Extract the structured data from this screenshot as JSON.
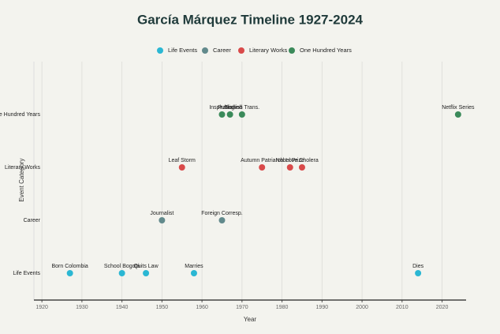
{
  "chart_data": {
    "type": "scatter",
    "title": "García Márquez Timeline 1927-2024",
    "xlabel": "Year",
    "ylabel": "Event Category",
    "ycategories": [
      "Life Events",
      "Career",
      "Literary Works",
      "One Hundred Years"
    ],
    "xlim": [
      1918,
      2026
    ],
    "xticks": [
      1920,
      1930,
      1940,
      1950,
      1960,
      1970,
      1980,
      1990,
      2000,
      2010,
      2020
    ],
    "grid": true,
    "legend": "top",
    "series": [
      {
        "name": "Life Events",
        "color": "#2bb7d3",
        "x": [
          1927,
          1940,
          1946,
          1958,
          2014
        ],
        "labels": [
          "Born Colombia",
          "School Bogotá",
          "Quits Law",
          "Marries",
          "Dies"
        ]
      },
      {
        "name": "Career",
        "color": "#628a8c",
        "x": [
          1950,
          1965
        ],
        "labels": [
          "Journalist",
          "Foreign Corresp."
        ]
      },
      {
        "name": "Literary Works",
        "color": "#d94a4a",
        "x": [
          1955,
          1975,
          1982,
          1985
        ],
        "labels": [
          "Leaf Storm",
          "Autumn Patriarch",
          "Nobel Prize",
          "Love Cholera"
        ]
      },
      {
        "name": "One Hundred Years",
        "color": "#3b8a5a",
        "x": [
          1965,
          1967,
          1970,
          2024
        ],
        "labels": [
          "Inspiration",
          "Published",
          "English Trans.",
          "Netflix Series"
        ]
      }
    ]
  }
}
